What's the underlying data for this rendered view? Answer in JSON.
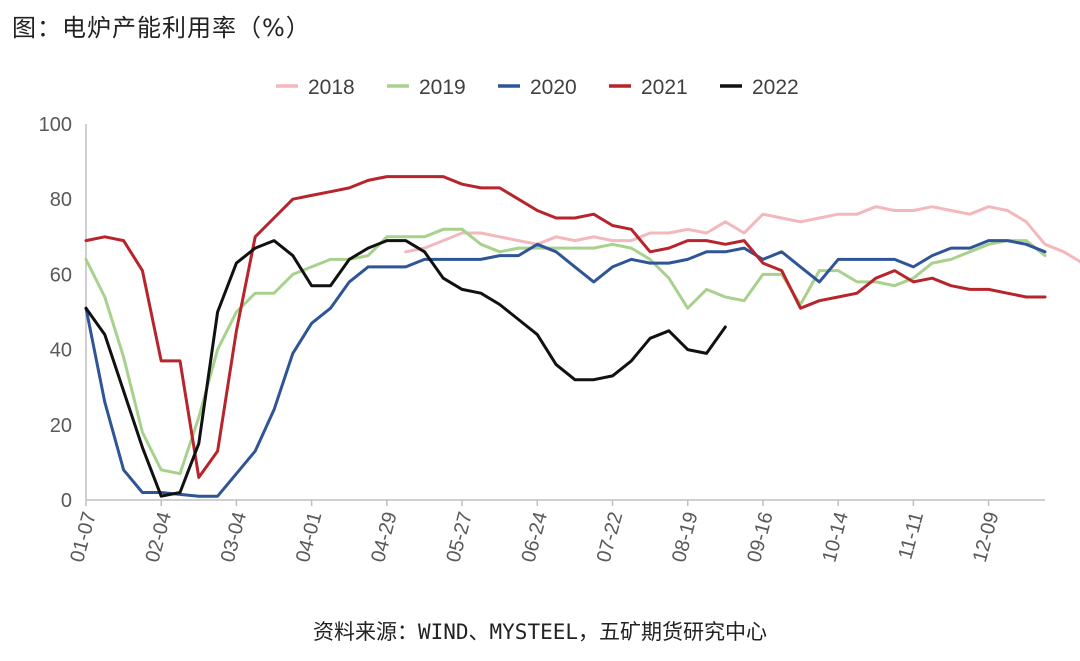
{
  "title": "图：电炉产能利用率（%）",
  "source": "资料来源：WIND、MYSTEEL，五矿期货研究中心",
  "chart_data": {
    "type": "line",
    "title": "",
    "xlabel": "",
    "ylabel": "",
    "ylim": [
      0,
      100
    ],
    "y_ticks": [
      "0",
      "20",
      "40",
      "60",
      "80",
      "100"
    ],
    "x_ticks": [
      "01-07",
      "02-04",
      "03-04",
      "04-01",
      "04-29",
      "05-27",
      "06-24",
      "07-22",
      "08-19",
      "09-16",
      "10-14",
      "11-11",
      "12-09"
    ],
    "grid": false,
    "legend_position": "top",
    "series": [
      {
        "name": "2018",
        "color": "#f2b8bc",
        "values": [
          null,
          null,
          null,
          null,
          null,
          null,
          null,
          null,
          null,
          null,
          null,
          null,
          null,
          null,
          null,
          null,
          null,
          66,
          67,
          69,
          71,
          71,
          70,
          69,
          68,
          70,
          69,
          70,
          69,
          69,
          71,
          71,
          72,
          71,
          74,
          71,
          76,
          75,
          74,
          75,
          76,
          76,
          78,
          77,
          77,
          78,
          77,
          76,
          78,
          77,
          74,
          68,
          66,
          63,
          61
        ]
      },
      {
        "name": "2019",
        "color": "#a9d18e",
        "values": [
          64,
          54,
          38,
          18,
          8,
          7,
          22,
          40,
          50,
          55,
          55,
          60,
          62,
          64,
          64,
          65,
          70,
          70,
          70,
          72,
          72,
          68,
          66,
          67,
          67,
          67,
          67,
          67,
          68,
          67,
          64,
          59,
          51,
          56,
          54,
          53,
          60,
          60,
          52,
          61,
          61,
          58,
          58,
          57,
          59,
          63,
          64,
          66,
          68,
          69,
          69,
          65
        ]
      },
      {
        "name": "2020",
        "color": "#2f5597",
        "values": [
          51,
          26,
          8,
          2,
          2,
          1.5,
          1,
          1,
          7,
          13,
          24,
          39,
          47,
          51,
          58,
          62,
          62,
          62,
          64,
          64,
          64,
          64,
          65,
          65,
          68,
          66,
          62,
          58,
          62,
          64,
          63,
          63,
          64,
          66,
          66,
          67,
          64,
          66,
          62,
          58,
          64,
          64,
          64,
          64,
          62,
          65,
          67,
          67,
          69,
          69,
          68,
          66
        ]
      },
      {
        "name": "2021",
        "color": "#b7242b",
        "values": [
          69,
          70,
          69,
          61,
          37,
          37,
          6,
          13,
          45,
          70,
          75,
          80,
          81,
          82,
          83,
          85,
          86,
          86,
          86,
          86,
          84,
          83,
          83,
          80,
          77,
          75,
          75,
          76,
          73,
          72,
          66,
          67,
          69,
          69,
          68,
          69,
          63,
          61,
          51,
          53,
          54,
          55,
          59,
          61,
          58,
          59,
          57,
          56,
          56,
          55,
          54,
          54
        ]
      },
      {
        "name": "2022",
        "color": "#111111",
        "values": [
          51,
          44,
          29,
          14,
          1,
          2,
          15,
          50,
          63,
          67,
          69,
          65,
          57,
          57,
          64,
          67,
          69,
          69,
          66,
          59,
          56,
          55,
          52,
          48,
          44,
          36,
          32,
          32,
          33,
          37,
          43,
          45,
          40,
          39,
          46
        ]
      }
    ]
  },
  "colors": {
    "axis": "#bfbfbf",
    "tick_text": "#595959"
  }
}
